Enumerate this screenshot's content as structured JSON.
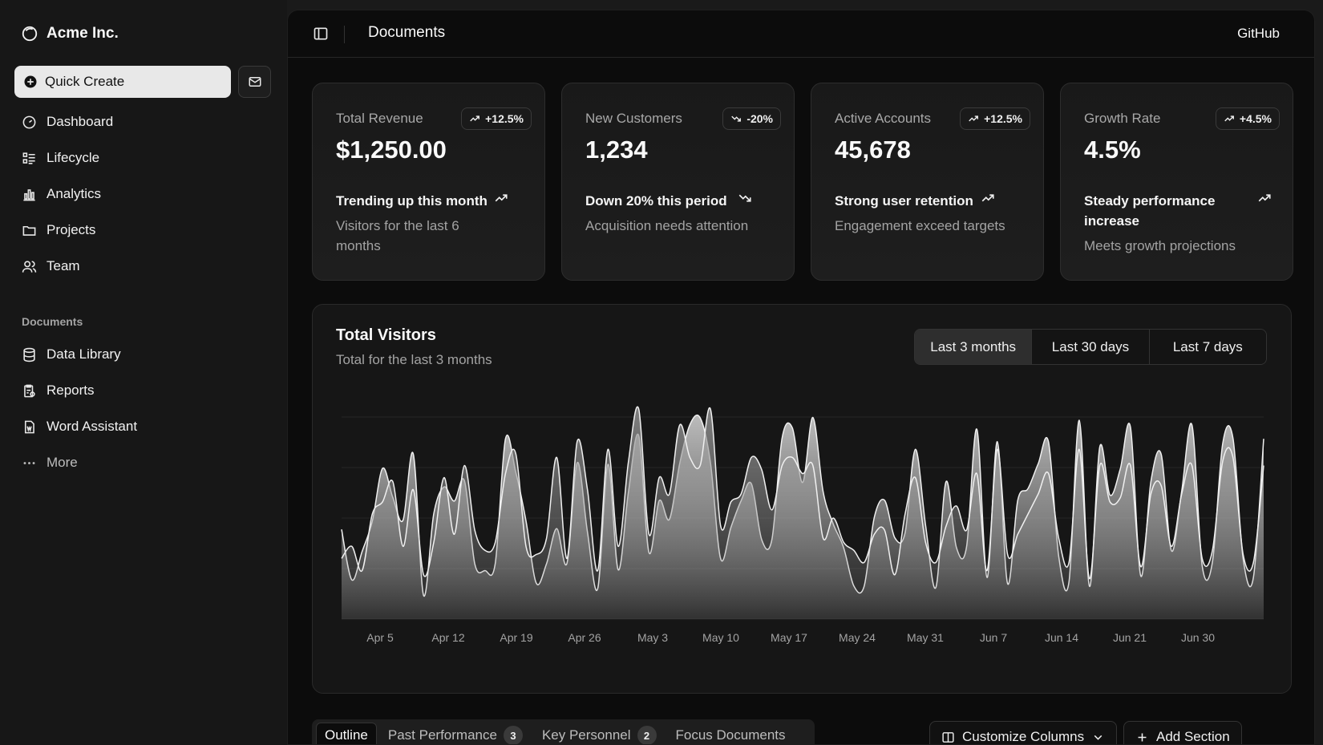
{
  "brand": {
    "name": "Acme Inc.",
    "logo_icon": "circle-logo-icon"
  },
  "sidebar": {
    "quick_create": "Quick Create",
    "inbox_icon": "mail-icon",
    "main_items": [
      {
        "label": "Dashboard",
        "icon": "gauge-icon"
      },
      {
        "label": "Lifecycle",
        "icon": "list-icon"
      },
      {
        "label": "Analytics",
        "icon": "bar-chart-icon"
      },
      {
        "label": "Projects",
        "icon": "folder-icon"
      },
      {
        "label": "Team",
        "icon": "users-icon"
      }
    ],
    "documents_label": "Documents",
    "document_items": [
      {
        "label": "Data Library",
        "icon": "database-icon"
      },
      {
        "label": "Reports",
        "icon": "report-icon"
      },
      {
        "label": "Word Assistant",
        "icon": "file-word-icon"
      },
      {
        "label": "More",
        "icon": "more-dots-icon"
      }
    ]
  },
  "header": {
    "title": "Documents",
    "github": "GitHub"
  },
  "cards": [
    {
      "title": "Total Revenue",
      "badge": "+12.5%",
      "trend": "up",
      "value": "$1,250.00",
      "footer_title": "Trending up this month",
      "footer_desc": "Visitors for the last 6 months"
    },
    {
      "title": "New Customers",
      "badge": "-20%",
      "trend": "down",
      "value": "1,234",
      "footer_title": "Down 20% this period",
      "footer_desc": "Acquisition needs attention"
    },
    {
      "title": "Active Accounts",
      "badge": "+12.5%",
      "trend": "up",
      "value": "45,678",
      "footer_title": "Strong user retention",
      "footer_desc": "Engagement exceed targets"
    },
    {
      "title": "Growth Rate",
      "badge": "+4.5%",
      "trend": "up",
      "value": "4.5%",
      "footer_title": "Steady performance increase",
      "footer_desc": "Meets growth projections"
    }
  ],
  "visitors": {
    "title": "Total Visitors",
    "subtitle": "Total for the last 3 months",
    "ranges": [
      "Last 3 months",
      "Last 30 days",
      "Last 7 days"
    ],
    "active_range": "Last 3 months"
  },
  "chart_data": {
    "type": "area",
    "title": "Total Visitors",
    "x_tick_labels": [
      "Apr 5",
      "Apr 12",
      "Apr 19",
      "Apr 26",
      "May 3",
      "May 10",
      "May 17",
      "May 24",
      "May 31",
      "Jun 7",
      "Jun 14",
      "Jun 21",
      "Jun 30"
    ],
    "x_start": "Apr 1",
    "x_end": "Jun 30",
    "y_range": [
      0,
      500
    ],
    "grid": "horizontal",
    "series": [
      {
        "values": [
          222,
          97,
          167,
          242,
          373,
          301,
          245,
          409,
          59,
          261,
          327,
          292,
          342,
          137,
          120,
          138,
          446,
          364,
          243,
          89,
          137,
          224,
          138,
          387,
          215,
          75,
          383,
          122,
          315,
          454,
          165,
          293,
          247,
          385,
          481,
          498,
          388,
          149,
          227,
          293,
          335,
          197,
          197,
          448,
          473,
          338,
          499,
          315,
          235,
          177,
          82,
          81,
          252,
          294,
          201,
          213,
          420,
          233,
          78,
          340,
          178,
          178,
          470,
          103,
          439,
          88,
          294,
          323,
          385,
          438,
          155,
          92,
          492,
          81,
          426,
          307,
          371,
          475,
          107,
          341,
          408,
          169,
          317,
          480,
          132,
          141,
          434,
          448,
          149,
          103,
          446
        ]
      },
      {
        "values": [
          150,
          180,
          120,
          260,
          290,
          340,
          180,
          320,
          110,
          190,
          350,
          210,
          380,
          220,
          170,
          190,
          360,
          410,
          180,
          160,
          200,
          400,
          150,
          440,
          320,
          120,
          420,
          180,
          390,
          520,
          210,
          350,
          310,
          480,
          400,
          380,
          520,
          230,
          290,
          310,
          400,
          370,
          270,
          380,
          400,
          360,
          380,
          200,
          250,
          190,
          170,
          140,
          210,
          220,
          110,
          260,
          350,
          190,
          140,
          230,
          280,
          220,
          360,
          120,
          420,
          160,
          210,
          260,
          310,
          360,
          200,
          140,
          420,
          100,
          380,
          290,
          300,
          380,
          130,
          310,
          330,
          180,
          310,
          380,
          150,
          170,
          390,
          400,
          160,
          140,
          380
        ]
      }
    ]
  },
  "bottom": {
    "tabs": [
      {
        "label": "Outline",
        "count": ""
      },
      {
        "label": "Past Performance",
        "count": "3"
      },
      {
        "label": "Key Personnel",
        "count": "2"
      },
      {
        "label": "Focus Documents",
        "count": ""
      }
    ],
    "customize": "Customize Columns",
    "add_section": "Add Section"
  }
}
